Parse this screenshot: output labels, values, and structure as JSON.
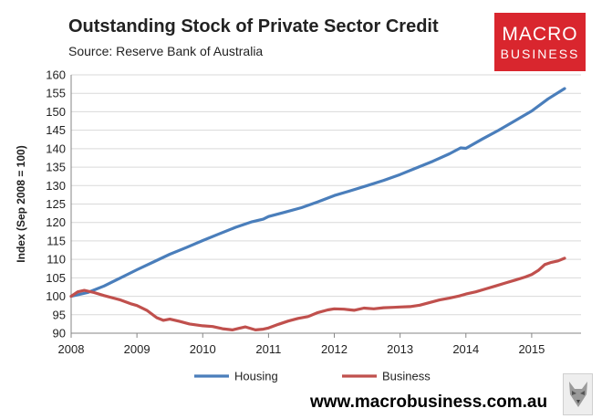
{
  "header": {
    "title": "Outstanding Stock of Private Sector Credit",
    "subtitle": "Source: Reserve Bank of Australia"
  },
  "logo": {
    "line1": "MACRO",
    "line2": "BUSINESS",
    "color": "#d9262e"
  },
  "footer": {
    "website": "www.macrobusiness.com.au",
    "icon": "wolf-icon"
  },
  "chart_data": {
    "type": "line",
    "title": "Outstanding Stock of Private Sector Credit",
    "subtitle": "Source: Reserve Bank of Australia",
    "xlabel": "",
    "ylabel": "Index (Sep 2008 = 100)",
    "xlim": [
      2008,
      2015.75
    ],
    "ylim": [
      90,
      160
    ],
    "x_ticks": [
      2008,
      2009,
      2010,
      2011,
      2012,
      2013,
      2014,
      2015
    ],
    "y_ticks": [
      90,
      95,
      100,
      105,
      110,
      115,
      120,
      125,
      130,
      135,
      140,
      145,
      150,
      155,
      160
    ],
    "grid": "horizontal",
    "legend": "bottom",
    "series": [
      {
        "name": "Housing",
        "color": "#4a7ebb",
        "points": [
          [
            2008.0,
            100.0
          ],
          [
            2008.25,
            101.0
          ],
          [
            2008.5,
            102.8
          ],
          [
            2008.75,
            105.0
          ],
          [
            2009.0,
            107.2
          ],
          [
            2009.25,
            109.3
          ],
          [
            2009.5,
            111.4
          ],
          [
            2009.75,
            113.2
          ],
          [
            2010.0,
            115.1
          ],
          [
            2010.25,
            116.9
          ],
          [
            2010.5,
            118.7
          ],
          [
            2010.75,
            120.2
          ],
          [
            2010.92,
            120.9
          ],
          [
            2011.0,
            121.6
          ],
          [
            2011.25,
            122.8
          ],
          [
            2011.5,
            124.0
          ],
          [
            2011.75,
            125.6
          ],
          [
            2012.0,
            127.3
          ],
          [
            2012.25,
            128.6
          ],
          [
            2012.5,
            130.0
          ],
          [
            2012.75,
            131.4
          ],
          [
            2013.0,
            133.0
          ],
          [
            2013.25,
            134.8
          ],
          [
            2013.5,
            136.6
          ],
          [
            2013.75,
            138.6
          ],
          [
            2013.92,
            140.2
          ],
          [
            2014.0,
            140.1
          ],
          [
            2014.25,
            142.6
          ],
          [
            2014.5,
            145.0
          ],
          [
            2014.75,
            147.6
          ],
          [
            2015.0,
            150.2
          ],
          [
            2015.25,
            153.5
          ],
          [
            2015.5,
            156.3
          ]
        ]
      },
      {
        "name": "Business",
        "color": "#c0504d",
        "points": [
          [
            2008.0,
            100.0
          ],
          [
            2008.1,
            101.2
          ],
          [
            2008.2,
            101.6
          ],
          [
            2008.35,
            101.0
          ],
          [
            2008.5,
            100.2
          ],
          [
            2008.75,
            99.0
          ],
          [
            2008.92,
            97.9
          ],
          [
            2009.0,
            97.5
          ],
          [
            2009.15,
            96.2
          ],
          [
            2009.3,
            94.2
          ],
          [
            2009.4,
            93.5
          ],
          [
            2009.5,
            93.8
          ],
          [
            2009.65,
            93.2
          ],
          [
            2009.8,
            92.5
          ],
          [
            2010.0,
            92.0
          ],
          [
            2010.15,
            91.8
          ],
          [
            2010.3,
            91.2
          ],
          [
            2010.45,
            90.9
          ],
          [
            2010.55,
            91.3
          ],
          [
            2010.65,
            91.7
          ],
          [
            2010.8,
            90.9
          ],
          [
            2010.92,
            91.1
          ],
          [
            2011.0,
            91.4
          ],
          [
            2011.15,
            92.4
          ],
          [
            2011.3,
            93.3
          ],
          [
            2011.45,
            94.0
          ],
          [
            2011.6,
            94.5
          ],
          [
            2011.75,
            95.6
          ],
          [
            2011.9,
            96.3
          ],
          [
            2012.0,
            96.6
          ],
          [
            2012.15,
            96.5
          ],
          [
            2012.3,
            96.2
          ],
          [
            2012.45,
            96.8
          ],
          [
            2012.6,
            96.6
          ],
          [
            2012.75,
            96.9
          ],
          [
            2012.9,
            97.0
          ],
          [
            2013.0,
            97.1
          ],
          [
            2013.15,
            97.2
          ],
          [
            2013.3,
            97.6
          ],
          [
            2013.45,
            98.3
          ],
          [
            2013.6,
            99.0
          ],
          [
            2013.75,
            99.5
          ],
          [
            2013.9,
            100.1
          ],
          [
            2014.0,
            100.6
          ],
          [
            2014.15,
            101.2
          ],
          [
            2014.3,
            102.0
          ],
          [
            2014.45,
            102.8
          ],
          [
            2014.6,
            103.6
          ],
          [
            2014.75,
            104.4
          ],
          [
            2014.9,
            105.2
          ],
          [
            2015.0,
            105.9
          ],
          [
            2015.1,
            107.0
          ],
          [
            2015.2,
            108.6
          ],
          [
            2015.3,
            109.2
          ],
          [
            2015.4,
            109.6
          ],
          [
            2015.5,
            110.3
          ]
        ]
      }
    ]
  }
}
